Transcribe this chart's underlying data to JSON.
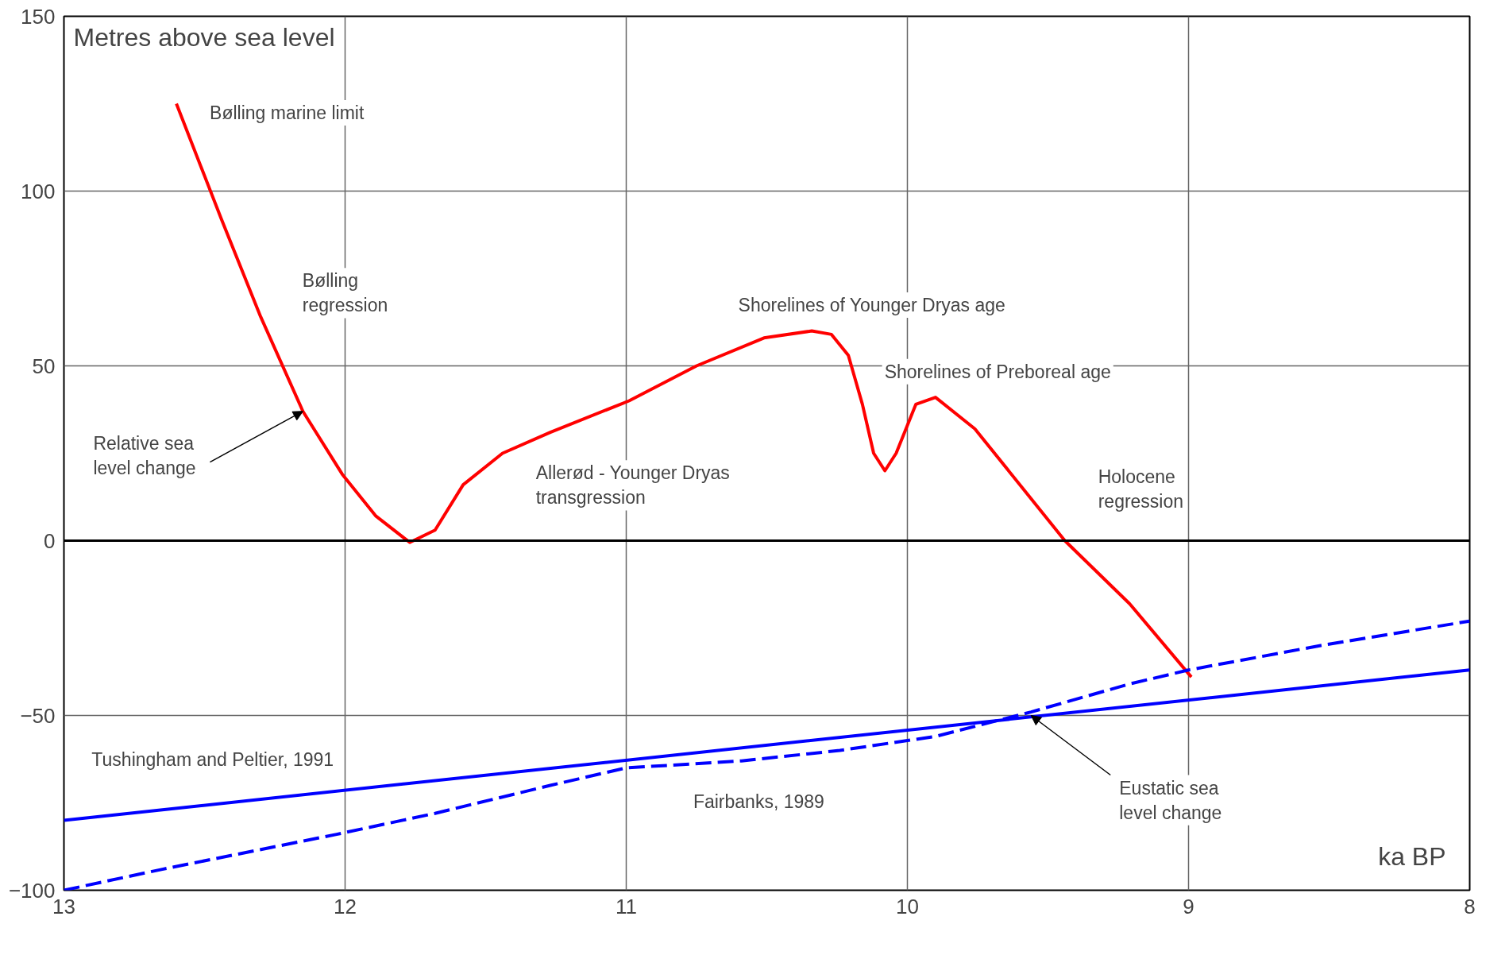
{
  "chart_data": {
    "type": "line",
    "ylabel": "Metres above sea level",
    "xlabel": "ka BP",
    "xlim": [
      13,
      8
    ],
    "xticks": [
      13,
      12,
      11,
      10,
      9,
      8
    ],
    "ylim": [
      -100,
      150
    ],
    "yticks": [
      -100,
      -50,
      0,
      50,
      100,
      150
    ],
    "grid": true,
    "series": [
      {
        "color": "#ff0000",
        "line_style": "solid",
        "x": [
          12.6,
          12.44,
          12.3,
          12.15,
          12.01,
          11.89,
          11.77,
          11.68,
          11.58,
          11.44,
          11.27,
          10.99,
          10.75,
          10.51,
          10.34,
          10.27,
          10.21,
          10.16,
          10.12,
          10.08,
          10.04,
          9.97,
          9.9,
          9.76,
          9.59,
          9.44,
          9.21,
          8.99
        ],
        "values": [
          125,
          92,
          64,
          37,
          19,
          7,
          -0.5,
          3,
          16,
          25,
          31,
          40,
          50,
          58,
          60,
          59,
          53,
          39,
          25,
          20,
          25,
          39,
          41,
          32,
          15,
          0,
          -18,
          -39
        ]
      },
      {
        "color": "#0000ff",
        "line_style": "solid",
        "x": [
          13,
          8
        ],
        "values": [
          -80,
          -37
        ]
      },
      {
        "color": "#0000ff",
        "line_style": "dashed",
        "x": [
          13,
          12.65,
          12.03,
          11.68,
          11.27,
          11.0,
          10.59,
          10.24,
          9.9,
          9.56,
          9.21,
          9.0,
          8.53,
          8
        ],
        "values": [
          -100,
          -94,
          -84,
          -78,
          -70,
          -65,
          -63,
          -60,
          -56,
          -49,
          -41,
          -37,
          -30,
          -23
        ]
      }
    ],
    "ref_lines": [
      {
        "axis": "y",
        "value": 0,
        "color": "#000000"
      }
    ],
    "annotations": [
      "Bølling marine limit",
      "Bølling\nregression",
      {
        "text": "Relative sea\nlevel change",
        "x": 12.15,
        "y": 37
      },
      "Allerød - Younger Dryas\ntransgression",
      "Shorelines of Younger Dryas age",
      "Shorelines of Preboreal age",
      "Holocene\nregression",
      "Tushingham and Peltier, 1991",
      "Fairbanks, 1989",
      {
        "text": "Eustatic sea\nlevel change",
        "x": 9.56,
        "y": -50
      }
    ]
  }
}
